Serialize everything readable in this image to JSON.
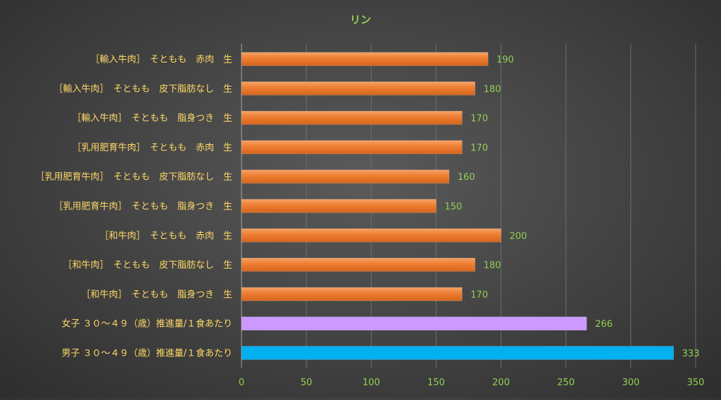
{
  "chart_data": {
    "type": "bar",
    "orientation": "horizontal",
    "title": "リン",
    "categories": [
      "［輸入牛肉］　そともも　赤肉　生",
      "［輸入牛肉］　そともも　皮下脂肪なし　生",
      "［輸入牛肉］　そともも　脂身つき　生",
      "［乳用肥育牛肉］　そともも　赤肉　生",
      "［乳用肥育牛肉］　そともも　皮下脂肪なし　生",
      "［乳用肥育牛肉］　そともも　脂身つき　生",
      "［和牛肉］　そともも　赤肉　生",
      "［和牛肉］　そともも　皮下脂肪なし　生",
      "［和牛肉］　そともも　脂身つき　生",
      "女子 ３０～４９（歳）推進量/１食あたり",
      "男子 ３０～４９（歳）推進量/１食あたり"
    ],
    "values": [
      190,
      180,
      170,
      170,
      160,
      150,
      200,
      180,
      170,
      266,
      333
    ],
    "bar_colors": [
      "#ed7d31",
      "#ed7d31",
      "#ed7d31",
      "#ed7d31",
      "#ed7d31",
      "#ed7d31",
      "#ed7d31",
      "#ed7d31",
      "#ed7d31",
      "#cc99ff",
      "#00b0f0"
    ],
    "xlim": [
      0,
      350
    ],
    "xticks": [
      0,
      50,
      100,
      150,
      200,
      250,
      300,
      350
    ],
    "grid": "vertical",
    "legend": "none",
    "data_labels": true,
    "text_color": "#92d050",
    "category_label_color": "#ffd966",
    "grid_color": "#6e6e6e"
  }
}
